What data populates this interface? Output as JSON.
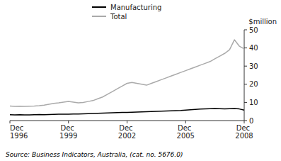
{
  "chart_data": {
    "type": "line",
    "y_label": "$million",
    "source": "Source: Business Indicators, Australia, (cat. no. 5676.0)",
    "categories": [
      "Dec 1996",
      null,
      null,
      null,
      null,
      null,
      null,
      null,
      null,
      null,
      null,
      null,
      "Dec 1999",
      null,
      null,
      null,
      null,
      null,
      null,
      null,
      null,
      null,
      null,
      null,
      "Dec 2002",
      null,
      null,
      null,
      null,
      null,
      null,
      null,
      null,
      null,
      null,
      null,
      "Dec 2005",
      null,
      null,
      null,
      null,
      null,
      null,
      null,
      null,
      null,
      null,
      null,
      "Dec 2008"
    ],
    "series": [
      {
        "name": "Manufacturing",
        "color": "#000000",
        "values": [
          3.2,
          3.1,
          3.2,
          3.1,
          3.1,
          3.2,
          3.3,
          3.2,
          3.3,
          3.4,
          3.5,
          3.5,
          3.5,
          3.6,
          3.6,
          3.7,
          3.8,
          3.9,
          4.0,
          4.1,
          4.2,
          4.3,
          4.4,
          4.5,
          4.5,
          4.6,
          4.7,
          4.8,
          4.9,
          5.0,
          5.1,
          5.2,
          5.3,
          5.4,
          5.5,
          5.6,
          5.8,
          6.0,
          6.2,
          6.3,
          6.4,
          6.5,
          6.6,
          6.5,
          6.4,
          6.5,
          6.6,
          6.4,
          5.8
        ]
      },
      {
        "name": "Total",
        "color": "#aaaaaa",
        "values": [
          8.0,
          7.8,
          7.9,
          7.8,
          7.9,
          8.0,
          8.2,
          8.5,
          9.0,
          9.5,
          9.8,
          10.2,
          10.5,
          10.2,
          9.8,
          10.0,
          10.5,
          11.0,
          12.0,
          13.0,
          14.5,
          16.0,
          17.5,
          19.0,
          20.5,
          21.0,
          20.5,
          20.0,
          19.5,
          20.5,
          21.5,
          22.5,
          23.5,
          24.5,
          25.5,
          26.5,
          27.5,
          28.5,
          29.5,
          30.5,
          31.5,
          32.5,
          34.0,
          35.5,
          37.0,
          39.0,
          44.5,
          41.0,
          39.5
        ]
      }
    ],
    "ylim": [
      0,
      50
    ],
    "yticks": [
      0,
      10,
      20,
      30,
      40,
      50
    ],
    "grid": false,
    "legend": "top"
  }
}
